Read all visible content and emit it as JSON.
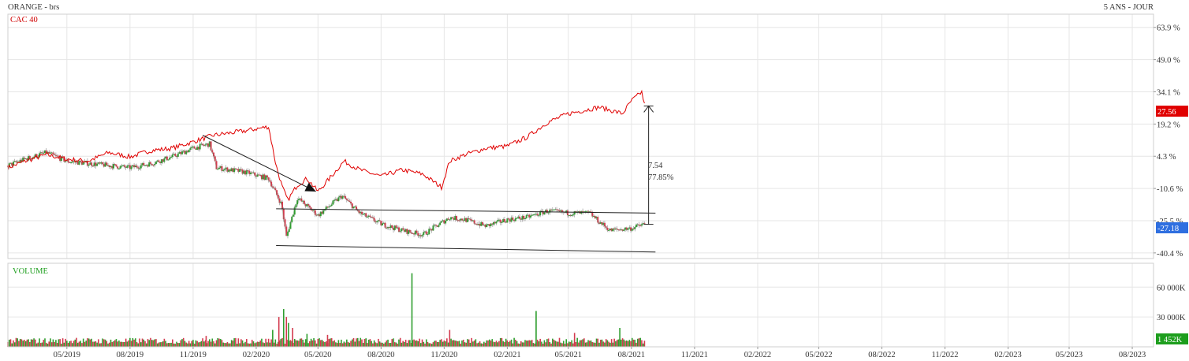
{
  "header": {
    "title": "ORANGE - brs",
    "period": "5 ANS - JOUR"
  },
  "chart_data": {
    "type": "line",
    "price_panel": {
      "y_axis_ticks": [
        "63.9 %",
        "49.0 %",
        "34.1 %",
        "19.2 %",
        "4.3 %",
        "-10.6 %",
        "-25.5 %",
        "-40.4 %"
      ],
      "y_tick_values": [
        63.9,
        49.0,
        34.1,
        19.2,
        4.3,
        -10.6,
        -25.5,
        -40.4
      ],
      "ylim": [
        -43.0,
        70.0
      ],
      "series": [
        {
          "name": "CAC 40",
          "color": "#e00000",
          "last_label": "27.56",
          "x": [
            "2019-02-04",
            "2019-03-01",
            "2019-04-01",
            "2019-05-01",
            "2019-06-01",
            "2019-07-01",
            "2019-08-01",
            "2019-09-01",
            "2019-10-01",
            "2019-11-01",
            "2019-12-01",
            "2020-01-15",
            "2020-02-19",
            "2020-03-01",
            "2020-03-10",
            "2020-03-18",
            "2020-04-01",
            "2020-04-15",
            "2020-05-01",
            "2020-05-15",
            "2020-06-08",
            "2020-07-01",
            "2020-08-01",
            "2020-09-01",
            "2020-10-01",
            "2020-10-28",
            "2020-11-09",
            "2020-12-01",
            "2021-01-01",
            "2021-02-01",
            "2021-03-01",
            "2021-04-01",
            "2021-05-01",
            "2021-06-15",
            "2021-07-19",
            "2021-08-01",
            "2021-08-16",
            "2021-08-20"
          ],
          "y": [
            -1,
            2,
            5,
            3,
            2,
            6,
            4,
            7,
            8,
            11,
            14,
            16,
            18,
            0,
            -10,
            -16,
            -9,
            -6,
            -12,
            -7,
            2,
            -2,
            -5,
            -2,
            -4,
            -10,
            2,
            5,
            8,
            9,
            13,
            20,
            24,
            27,
            24,
            30,
            34,
            28
          ]
        },
        {
          "name": "ORANGE",
          "color": "#3a7a3a",
          "last_label": "-27.18",
          "x": [
            "2019-02-04",
            "2019-03-01",
            "2019-04-01",
            "2019-05-01",
            "2019-06-01",
            "2019-07-01",
            "2019-08-01",
            "2019-09-01",
            "2019-10-01",
            "2019-11-01",
            "2019-11-25",
            "2019-12-05",
            "2020-01-15",
            "2020-02-19",
            "2020-03-09",
            "2020-03-16",
            "2020-04-01",
            "2020-05-01",
            "2020-06-05",
            "2020-07-01",
            "2020-08-01",
            "2020-09-01",
            "2020-10-01",
            "2020-11-09",
            "2020-12-01",
            "2021-01-01",
            "2021-02-01",
            "2021-03-01",
            "2021-04-01",
            "2021-05-01",
            "2021-06-01",
            "2021-06-15",
            "2021-07-01",
            "2021-08-01",
            "2021-08-20"
          ],
          "y": [
            0,
            3,
            6,
            2,
            1,
            0,
            -1,
            1,
            4,
            8,
            10,
            -1,
            -3,
            -6,
            -18,
            -33,
            -15,
            -23,
            -14,
            -22,
            -27,
            -30,
            -32,
            -24,
            -25,
            -28,
            -25,
            -24,
            -21,
            -22,
            -22,
            -26,
            -30,
            -29,
            -27
          ]
        }
      ],
      "annotations": {
        "diff_value": "7.54",
        "diff_percent": "77.85%",
        "downtrend_line": {
          "from": [
            "2019-11-15",
            14
          ],
          "to": [
            "2020-04-28",
            -12
          ]
        },
        "channel_upper": {
          "from": [
            "2020-03-01",
            -20
          ],
          "to": [
            "2021-09-05",
            -22
          ]
        },
        "channel_lower": {
          "from": [
            "2020-03-01",
            -37
          ],
          "to": [
            "2021-09-05",
            -40
          ]
        },
        "vertical_measure": {
          "x": "2021-08-26",
          "top": 27.56,
          "bottom": -27.18
        }
      }
    },
    "volume_panel": {
      "title": "VOLUME",
      "y_axis_ticks": [
        "60 000K",
        "30 000K"
      ],
      "y_tick_values": [
        60000,
        30000
      ],
      "ylim": [
        0,
        84000
      ],
      "last_label": "1 452K",
      "bars": [
        [
          "2019-05-15",
          9000
        ],
        [
          "2019-11-01",
          7000
        ],
        [
          "2019-11-20",
          11000
        ],
        [
          "2020-02-25",
          17000
        ],
        [
          "2020-03-05",
          30000
        ],
        [
          "2020-03-12",
          38000
        ],
        [
          "2020-03-16",
          30000
        ],
        [
          "2020-03-19",
          24000
        ],
        [
          "2020-03-25",
          19000
        ],
        [
          "2020-04-15",
          13000
        ],
        [
          "2020-05-15",
          12000
        ],
        [
          "2020-09-15",
          74000
        ],
        [
          "2020-11-09",
          17000
        ],
        [
          "2021-03-15",
          36000
        ],
        [
          "2021-05-10",
          14000
        ],
        [
          "2021-07-15",
          19000
        ]
      ]
    },
    "x_axis": {
      "ticks": [
        "05/2019",
        "08/2019",
        "11/2019",
        "02/2020",
        "05/2020",
        "08/2020",
        "11/2020",
        "02/2021",
        "05/2021",
        "08/2021",
        "11/2021",
        "02/2022",
        "05/2022",
        "08/2022",
        "11/2022",
        "02/2023",
        "05/2023",
        "08/2023"
      ],
      "tick_dates": [
        "2019-05-01",
        "2019-08-01",
        "2019-11-01",
        "2020-02-01",
        "2020-05-01",
        "2020-08-01",
        "2020-11-01",
        "2021-02-01",
        "2021-05-01",
        "2021-08-01",
        "2021-11-01",
        "2022-02-01",
        "2022-05-01",
        "2022-08-01",
        "2022-11-01",
        "2023-02-01",
        "2023-05-01",
        "2023-08-01"
      ],
      "range": [
        "2019-02-04",
        "2023-09-01"
      ]
    },
    "grid": true,
    "colors": {
      "up": "#2f9e2f",
      "down": "#d33a4e",
      "line": "#e00000",
      "axis": "#999999",
      "grid": "#e6e6e6",
      "tag_red": "#e00000",
      "tag_blue": "#2f6fe0",
      "tag_green": "#1d9e1d"
    }
  }
}
